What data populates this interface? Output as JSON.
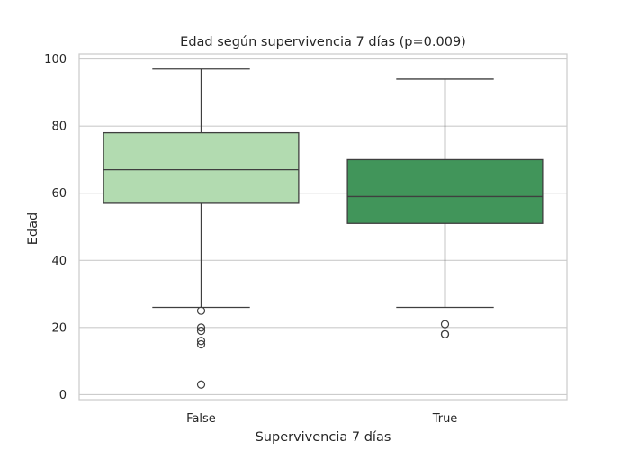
{
  "chart_data": {
    "type": "box",
    "title": "Edad según supervivencia 7 días (p=0.009)",
    "xlabel": "Supervivencia 7 días",
    "ylabel": "Edad",
    "categories": [
      "False",
      "True"
    ],
    "ylim": [
      -1.5,
      101.5
    ],
    "yticks": [
      0,
      20,
      40,
      60,
      80,
      100
    ],
    "grid": true,
    "boxes": [
      {
        "category": "False",
        "whisker_low": 26,
        "q1": 57,
        "median": 67,
        "q3": 78,
        "whisker_high": 97,
        "outliers": [
          25,
          20,
          19,
          16,
          15,
          3
        ],
        "color": "#b2dbb0"
      },
      {
        "category": "True",
        "whisker_low": 26,
        "q1": 51,
        "median": 59,
        "q3": 70,
        "whisker_high": 94,
        "outliers": [
          21,
          18,
          18
        ],
        "color": "#41955a"
      }
    ]
  }
}
